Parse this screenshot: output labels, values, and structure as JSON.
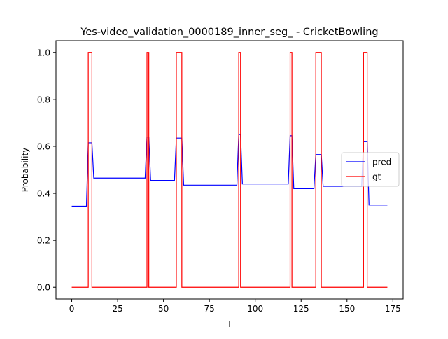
{
  "chart_data": {
    "type": "line",
    "title": "Yes-video_validation_0000189_inner_seg_ - CricketBowling",
    "xlabel": "T",
    "ylabel": "Probability",
    "xlim": [
      -8.6,
      180.6
    ],
    "ylim": [
      -0.05,
      1.05
    ],
    "xticks": [
      0,
      25,
      50,
      75,
      100,
      125,
      150,
      175
    ],
    "yticks": [
      0.0,
      0.2,
      0.4,
      0.6,
      0.8,
      1.0
    ],
    "xtick_labels": [
      "0",
      "25",
      "50",
      "75",
      "100",
      "125",
      "150",
      "175"
    ],
    "ytick_labels": [
      "0.0",
      "0.2",
      "0.4",
      "0.6",
      "0.8",
      "1.0"
    ],
    "legend_position": "center-right",
    "grid": false,
    "series": [
      {
        "name": "pred",
        "color": "#0000ff",
        "points": [
          [
            0,
            0.345
          ],
          [
            8,
            0.345
          ],
          [
            9,
            0.615
          ],
          [
            11,
            0.615
          ],
          [
            12,
            0.465
          ],
          [
            40,
            0.465
          ],
          [
            41,
            0.64
          ],
          [
            42,
            0.64
          ],
          [
            43,
            0.455
          ],
          [
            56,
            0.455
          ],
          [
            57,
            0.635
          ],
          [
            60,
            0.635
          ],
          [
            61,
            0.435
          ],
          [
            90,
            0.435
          ],
          [
            91,
            0.65
          ],
          [
            92,
            0.65
          ],
          [
            93,
            0.44
          ],
          [
            118,
            0.44
          ],
          [
            119,
            0.645
          ],
          [
            120,
            0.645
          ],
          [
            121,
            0.42
          ],
          [
            132,
            0.42
          ],
          [
            133,
            0.565
          ],
          [
            136,
            0.565
          ],
          [
            137,
            0.43
          ],
          [
            158,
            0.43
          ],
          [
            159,
            0.62
          ],
          [
            161,
            0.62
          ],
          [
            162,
            0.35
          ],
          [
            172,
            0.35
          ]
        ]
      },
      {
        "name": "gt",
        "color": "#ff0000",
        "points": [
          [
            0,
            0
          ],
          [
            9,
            0
          ],
          [
            9,
            1
          ],
          [
            11,
            1
          ],
          [
            11,
            0
          ],
          [
            41,
            0
          ],
          [
            41,
            1
          ],
          [
            42,
            1
          ],
          [
            42,
            0
          ],
          [
            57,
            0
          ],
          [
            57,
            1
          ],
          [
            60,
            1
          ],
          [
            60,
            0
          ],
          [
            91,
            0
          ],
          [
            91,
            1
          ],
          [
            92,
            1
          ],
          [
            92,
            0
          ],
          [
            119,
            0
          ],
          [
            119,
            1
          ],
          [
            120,
            1
          ],
          [
            120,
            0
          ],
          [
            133,
            0
          ],
          [
            133,
            1
          ],
          [
            136,
            1
          ],
          [
            136,
            0
          ],
          [
            159,
            0
          ],
          [
            159,
            1
          ],
          [
            161,
            1
          ],
          [
            161,
            0
          ],
          [
            172,
            0
          ]
        ]
      }
    ]
  }
}
